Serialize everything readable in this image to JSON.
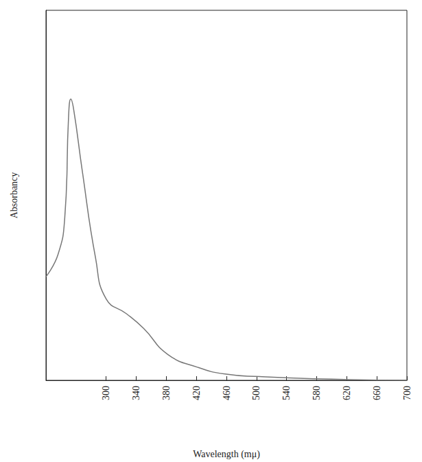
{
  "chart_data": {
    "type": "line",
    "x_label": "Wavelength (mμ)",
    "y_label": "Absorbancy",
    "x": [
      220,
      236,
      245,
      250,
      253,
      257,
      268,
      286,
      300,
      327,
      350,
      382,
      422,
      458,
      504,
      576,
      700
    ],
    "values": [
      0.28,
      0.34,
      0.44,
      0.71,
      0.76,
      0.73,
      0.57,
      0.33,
      0.22,
      0.18,
      0.14,
      0.07,
      0.035,
      0.017,
      0.01,
      0.004,
      0
    ],
    "color": "#777777",
    "xlim": [
      220,
      700
    ],
    "xticks": [
      300,
      340,
      380,
      420,
      460,
      500,
      540,
      580,
      620,
      660,
      700
    ],
    "ylim": [
      0,
      1
    ],
    "grid": false,
    "tick_labels": "x"
  }
}
